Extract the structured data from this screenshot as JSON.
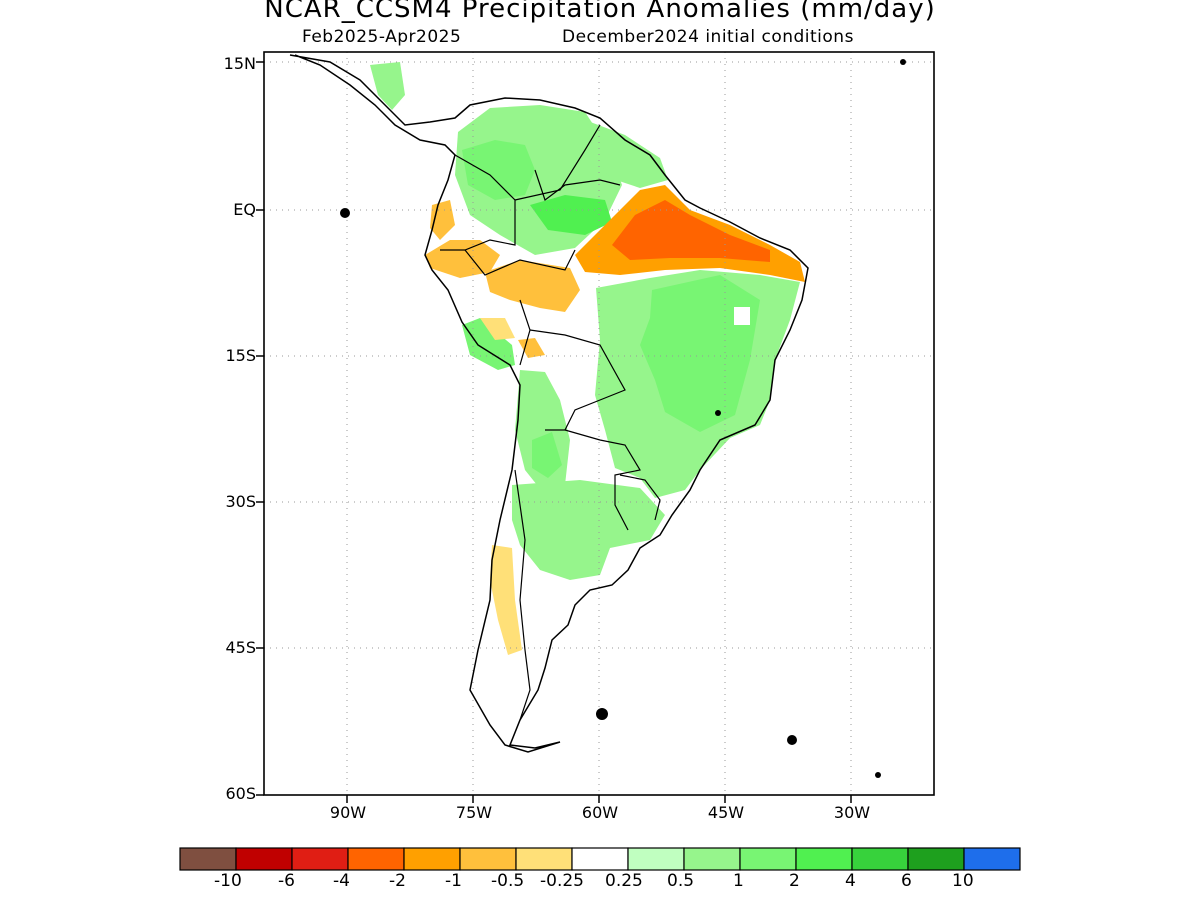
{
  "header": {
    "title": "NCAR_CCSM4 Precipitation Anomalies (mm/day)",
    "period": "Feb2025-Apr2025",
    "init": "December2024 initial conditions"
  },
  "map": {
    "lat_labels": [
      "15N",
      "EQ",
      "15S",
      "30S",
      "45S",
      "60S"
    ],
    "lon_labels": [
      "90W",
      "75W",
      "60W",
      "45W",
      "30W"
    ],
    "colors": {
      "dry_strong": "#ff6400",
      "dry_mod": "#ffa000",
      "dry_light": "#ffc03c",
      "dry_weak": "#ffe078",
      "wet_weak": "#c0ffc0",
      "wet_light": "#96f58c",
      "wet_mod": "#78f573",
      "wet_strong": "#50f050",
      "coast": "#000000",
      "grid": "#999999"
    }
  },
  "colorbar": {
    "colors": [
      "#7f4f40",
      "#c00000",
      "#e01e14",
      "#ff6400",
      "#ffa000",
      "#ffc03c",
      "#ffe078",
      "#ffffff",
      "#c0ffc0",
      "#96f58c",
      "#78f573",
      "#50f050",
      "#37d23c",
      "#1ea01e",
      "#1e6eeb"
    ],
    "labels": [
      "-10",
      "-6",
      "-4",
      "-2",
      "-1",
      "-0.5",
      "-0.25",
      "0.25",
      "0.5",
      "1",
      "2",
      "4",
      "6",
      "10"
    ]
  }
}
